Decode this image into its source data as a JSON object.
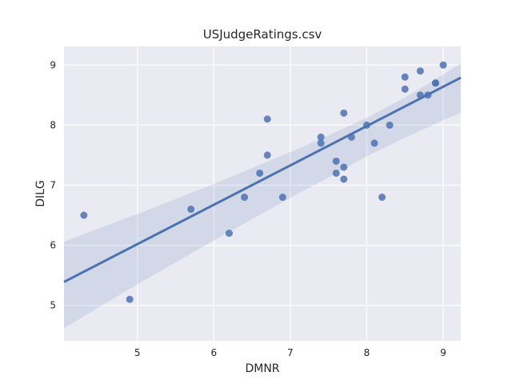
{
  "chart_data": {
    "type": "scatter",
    "title": "USJudgeRatings.csv",
    "xlabel": "DMNR",
    "ylabel": "DILG",
    "xlim": [
      4.04,
      9.23
    ],
    "ylim": [
      4.41,
      9.31
    ],
    "xticks": [
      5,
      6,
      7,
      8,
      9
    ],
    "yticks": [
      5,
      6,
      7,
      8,
      9
    ],
    "grid": true,
    "colors": {
      "background": "#EAEAF2",
      "grid": "#FFFFFF",
      "points": "#4C72B0",
      "line": "#4C72B0",
      "band": "#4C72B0"
    },
    "points": [
      {
        "x": 4.3,
        "y": 6.5
      },
      {
        "x": 4.9,
        "y": 5.1
      },
      {
        "x": 5.7,
        "y": 6.6
      },
      {
        "x": 6.2,
        "y": 6.2
      },
      {
        "x": 6.4,
        "y": 6.8
      },
      {
        "x": 6.6,
        "y": 7.2
      },
      {
        "x": 6.7,
        "y": 7.5
      },
      {
        "x": 6.7,
        "y": 8.1
      },
      {
        "x": 6.9,
        "y": 6.8
      },
      {
        "x": 7.4,
        "y": 7.8
      },
      {
        "x": 7.4,
        "y": 7.7
      },
      {
        "x": 7.6,
        "y": 7.4
      },
      {
        "x": 7.6,
        "y": 7.2
      },
      {
        "x": 7.7,
        "y": 7.3
      },
      {
        "x": 7.7,
        "y": 7.1
      },
      {
        "x": 7.7,
        "y": 8.2
      },
      {
        "x": 7.8,
        "y": 7.8
      },
      {
        "x": 8.0,
        "y": 8.0
      },
      {
        "x": 8.1,
        "y": 7.7
      },
      {
        "x": 8.2,
        "y": 6.8
      },
      {
        "x": 8.3,
        "y": 8.0
      },
      {
        "x": 8.5,
        "y": 8.8
      },
      {
        "x": 8.5,
        "y": 8.6
      },
      {
        "x": 8.7,
        "y": 8.9
      },
      {
        "x": 8.7,
        "y": 8.5
      },
      {
        "x": 8.8,
        "y": 8.5
      },
      {
        "x": 8.9,
        "y": 8.7
      },
      {
        "x": 8.9,
        "y": 8.7
      },
      {
        "x": 9.0,
        "y": 9.0
      }
    ],
    "regression_line": [
      {
        "x": 4.04,
        "y": 5.39
      },
      {
        "x": 9.23,
        "y": 8.79
      }
    ],
    "confidence_band": {
      "upper": [
        {
          "x": 4.04,
          "y": 6.06
        },
        {
          "x": 5.0,
          "y": 6.52
        },
        {
          "x": 6.0,
          "y": 7.02
        },
        {
          "x": 7.0,
          "y": 7.55
        },
        {
          "x": 7.5,
          "y": 7.83
        },
        {
          "x": 8.0,
          "y": 8.12
        },
        {
          "x": 8.5,
          "y": 8.46
        },
        {
          "x": 9.0,
          "y": 8.84
        },
        {
          "x": 9.23,
          "y": 9.03
        }
      ],
      "lower": [
        {
          "x": 4.04,
          "y": 4.62
        },
        {
          "x": 5.0,
          "y": 5.35
        },
        {
          "x": 6.0,
          "y": 6.08
        },
        {
          "x": 7.0,
          "y": 6.79
        },
        {
          "x": 7.5,
          "y": 7.13
        },
        {
          "x": 8.0,
          "y": 7.48
        },
        {
          "x": 8.5,
          "y": 7.79
        },
        {
          "x": 9.0,
          "y": 8.08
        },
        {
          "x": 9.23,
          "y": 8.21
        }
      ]
    }
  }
}
